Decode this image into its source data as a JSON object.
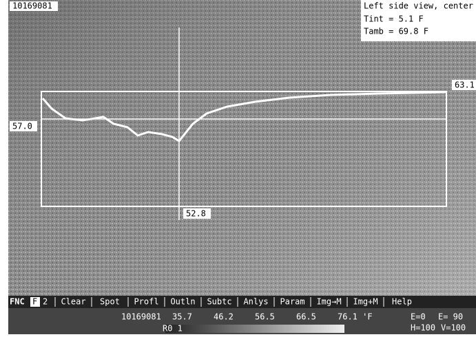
{
  "header": {
    "file_id": "10169081",
    "view": "Left side view, center",
    "tint": "Tint =  5.1 F",
    "tamb": "Tamb = 69.8 F"
  },
  "profile": {
    "max_label": "63.1",
    "cursor_label": "57.0",
    "min_label": "52.8"
  },
  "menu": {
    "fnc": "FNC",
    "f_key": "F",
    "page": "2",
    "items": [
      "Clear",
      "Spot",
      "Profl",
      "Outln",
      "Subtc",
      "Anlys",
      "Param",
      "Img→M",
      "Img+M",
      "Help"
    ]
  },
  "status": {
    "file_id": "10169081",
    "scale": [
      "35.7",
      "46.2",
      "56.5",
      "66.5",
      "76.1 'F"
    ],
    "range": "R0  1",
    "e0": "E=0",
    "e1": "E= 90",
    "h": "H=100",
    "v": "V=100"
  }
}
